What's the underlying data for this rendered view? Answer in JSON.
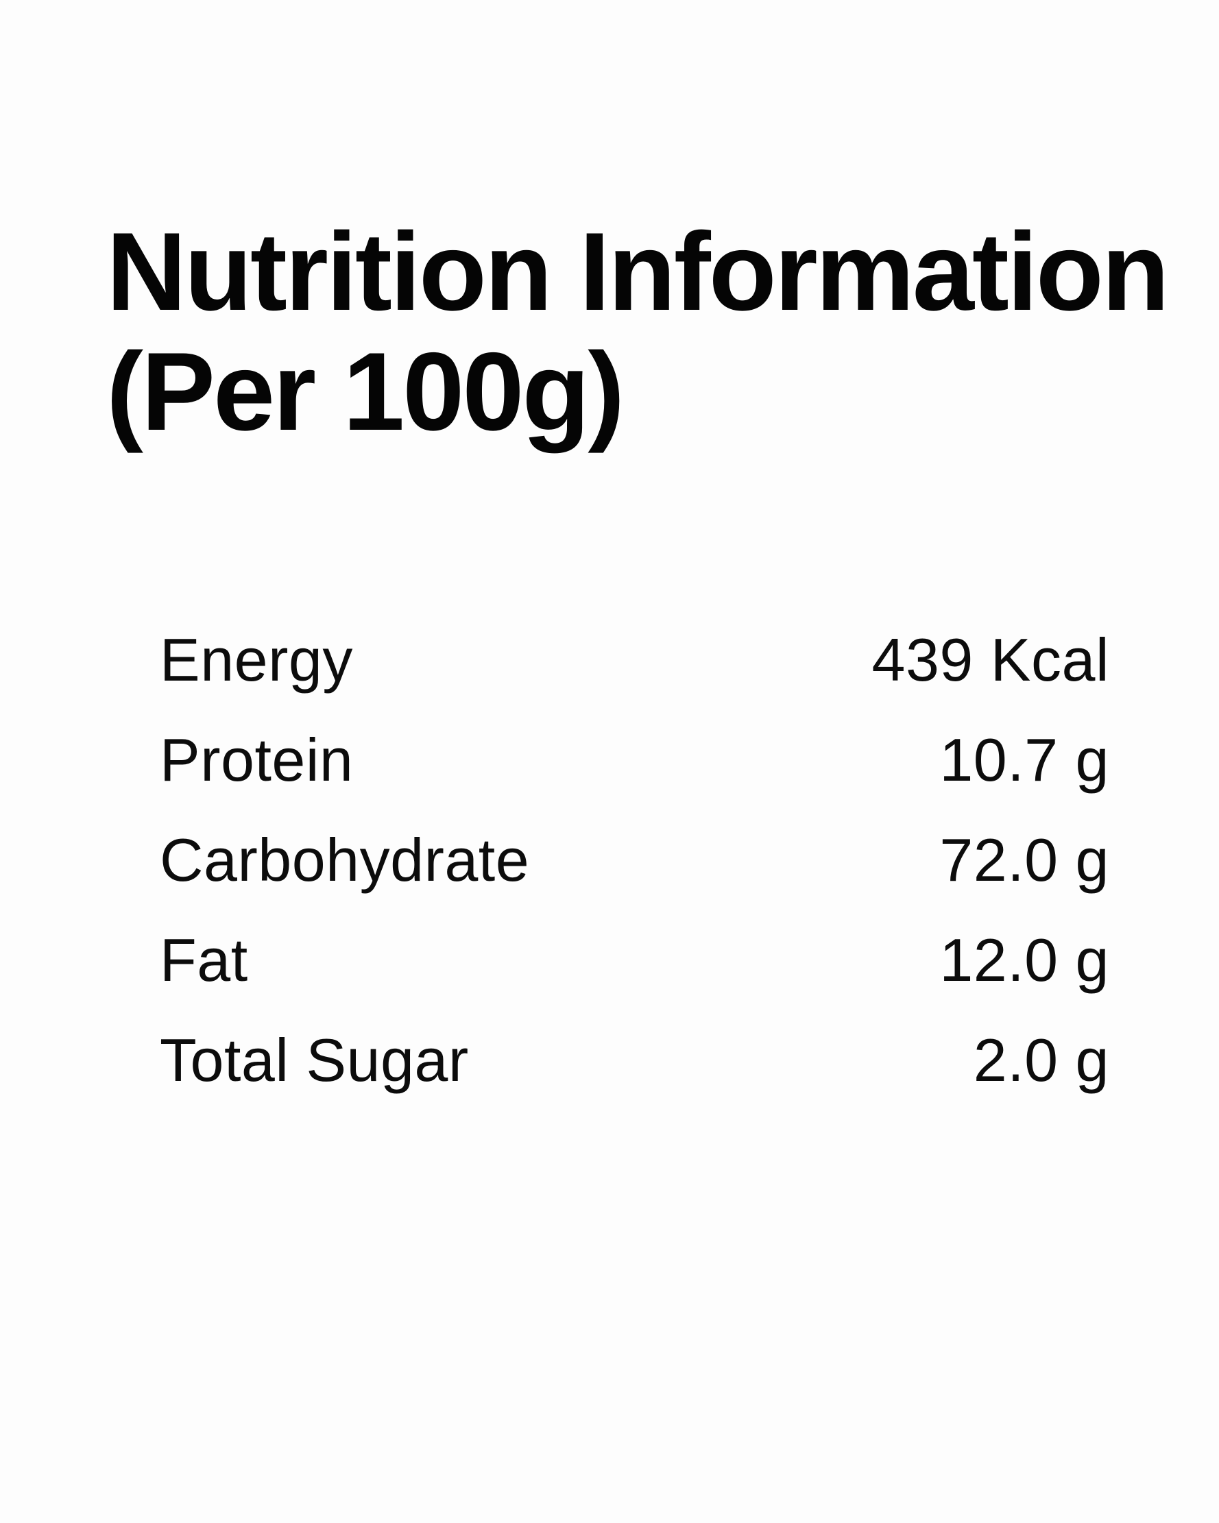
{
  "page": {
    "background_color": "#fdfdfd",
    "text_color": "#0a0a0a"
  },
  "header": {
    "title_line1": "Nutrition Information",
    "title_line2": "(Per 100g)"
  },
  "nutrition_table": {
    "rows": [
      {
        "label": "Energy",
        "value": "439 Kcal"
      },
      {
        "label": "Protein",
        "value": "10.7 g"
      },
      {
        "label": "Carbohydrate",
        "value": "72.0 g"
      },
      {
        "label": "Fat",
        "value": "12.0 g"
      },
      {
        "label": "Total Sugar",
        "value": "2.0 g"
      }
    ]
  }
}
